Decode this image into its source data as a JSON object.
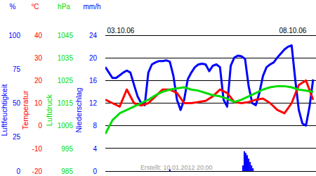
{
  "chart_data": [
    {
      "type": "line",
      "ylabel": "Luftfeuchtigkeit",
      "unit": "%",
      "color": "#0000ff",
      "xlim": [
        0,
        147
      ],
      "xticks": [
        {
          "value": 0,
          "label": "03.10.06"
        },
        {
          "value": 120,
          "label": "08.10.06"
        }
      ],
      "ylim": [
        0,
        100
      ],
      "yticks": [
        0,
        25,
        50,
        75,
        100
      ],
      "x": [
        0,
        2.5,
        5,
        7.5,
        10,
        12.5,
        15,
        17.5,
        20,
        22.5,
        25,
        27.5,
        30,
        32.5,
        35,
        37.5,
        40,
        42.5,
        45,
        47.5,
        50,
        52.5,
        55,
        57.5,
        60,
        62.5,
        65,
        67.5,
        70,
        72.5,
        75,
        77.5,
        80,
        82.5,
        85,
        87.5,
        90,
        92.5,
        95,
        97.5,
        100,
        102.5,
        105,
        107.5,
        110,
        112.5,
        115,
        117.5,
        120,
        122.5,
        125,
        127.5,
        130,
        132.5,
        135,
        137.5,
        140,
        142.5,
        145
      ],
      "values": [
        76.5,
        72.5,
        68.5,
        68.5,
        70.5,
        72.5,
        74,
        72.5,
        63.5,
        55,
        50,
        48.5,
        72.5,
        78.5,
        80,
        81,
        81,
        81.5,
        80.5,
        70,
        52.5,
        45,
        52.5,
        67.5,
        72.5,
        76.5,
        78.5,
        79,
        78.5,
        73.5,
        77.5,
        78.5,
        76.5,
        52.5,
        47.5,
        77.5,
        83.5,
        85,
        84.5,
        82.5,
        62.5,
        50,
        48.5,
        57.5,
        70,
        76.5,
        78.5,
        80,
        83.5,
        86.5,
        89.5,
        91.5,
        92.5,
        67.5,
        45,
        35,
        33.5,
        47.5,
        67.5
      ]
    },
    {
      "type": "line",
      "ylabel": "Temperatur",
      "unit": "°C",
      "color": "#ff0000",
      "grid": true,
      "xlim": [
        0,
        147
      ],
      "ylim": [
        -20,
        40
      ],
      "yticks": [
        -20,
        -10,
        0,
        10,
        20,
        30,
        40
      ],
      "x": [
        0,
        5,
        10,
        15,
        20,
        25,
        30,
        35,
        40,
        45,
        50,
        55,
        60,
        65,
        70,
        75,
        80,
        85,
        90,
        95,
        100,
        105,
        110,
        115,
        120,
        125,
        130,
        135,
        140,
        145
      ],
      "values": [
        11.5,
        10,
        8.5,
        16,
        10,
        9,
        10,
        13,
        16,
        16,
        14.5,
        10,
        10,
        10.5,
        11,
        13,
        16,
        14.5,
        10.5,
        10,
        10.5,
        11.5,
        12,
        10,
        7,
        5.5,
        10,
        18,
        20,
        11.5
      ]
    },
    {
      "type": "line",
      "ylabel": "Luftdruck",
      "unit": "hPa",
      "color": "#00dd00",
      "xlim": [
        0,
        147
      ],
      "ylim": [
        985,
        1045
      ],
      "yticks": [
        985,
        995,
        1005,
        1015,
        1025,
        1035,
        1045
      ],
      "x": [
        0,
        5,
        10,
        15,
        20,
        25,
        30,
        35,
        40,
        45,
        50,
        55,
        60,
        65,
        70,
        75,
        80,
        85,
        90,
        95,
        100,
        105,
        110,
        115,
        120,
        125,
        130,
        135,
        140,
        145
      ],
      "values": [
        1001.5,
        1007.5,
        1010.5,
        1012,
        1013.5,
        1015,
        1016.5,
        1018.5,
        1020,
        1021,
        1021.5,
        1022,
        1021,
        1020.5,
        1019.5,
        1018.5,
        1018,
        1017,
        1015.5,
        1016.5,
        1018,
        1019.5,
        1021,
        1022,
        1022.5,
        1022.5,
        1022,
        1021,
        1020.5,
        1020
      ]
    },
    {
      "type": "bar",
      "ylabel": "Niederschlag",
      "unit": "mm/h",
      "color": "#0000ff",
      "annotation": "Erstellt: 10.01.2012 20:00",
      "xlim": [
        0,
        147
      ],
      "ylim": [
        0,
        24
      ],
      "yticks": [
        0,
        4,
        8,
        12,
        16,
        20,
        24
      ],
      "x": [
        45,
        96,
        97,
        98,
        99,
        100,
        101,
        102,
        103
      ],
      "values": [
        0.3,
        1,
        3.5,
        3.2,
        2.8,
        2.2,
        1.6,
        1,
        0.5
      ]
    }
  ]
}
